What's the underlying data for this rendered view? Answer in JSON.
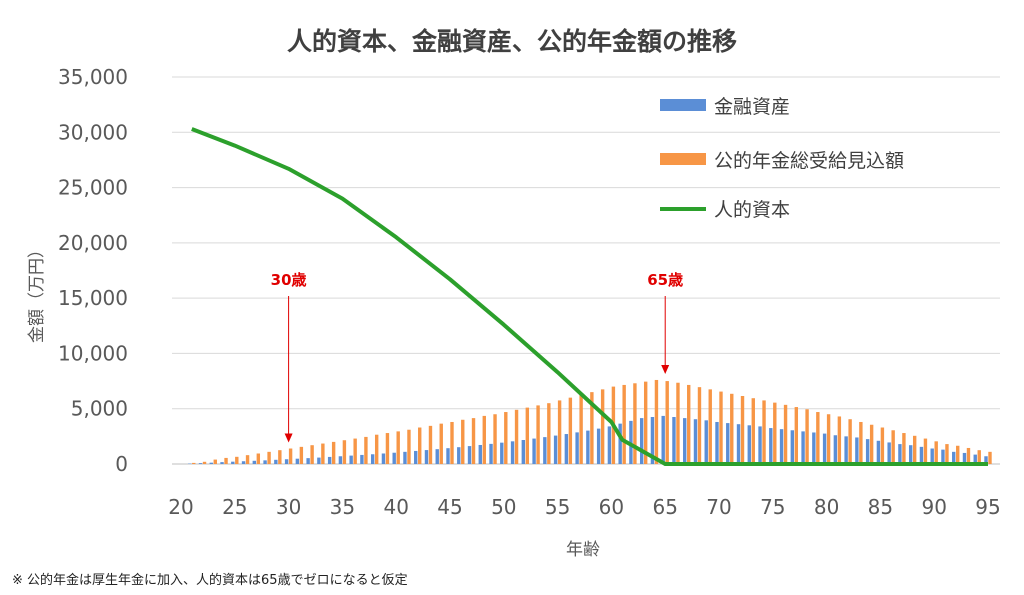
{
  "chart_data": {
    "type": "bar",
    "title": "人的資本、金融資産、公的年金額の推移",
    "xlabel": "年齢",
    "ylabel": "金額（万円）",
    "ylim": [
      0,
      35000
    ],
    "yticks": [
      0,
      5000,
      10000,
      15000,
      20000,
      25000,
      30000,
      35000
    ],
    "ytick_labels": [
      "0",
      "5,000",
      "10,000",
      "15,000",
      "20,000",
      "25,000",
      "30,000",
      "35,000"
    ],
    "xlim": [
      20,
      95
    ],
    "xticks": [
      20,
      25,
      30,
      35,
      40,
      45,
      50,
      55,
      60,
      65,
      70,
      75,
      80,
      85,
      90,
      95
    ],
    "grid": true,
    "legend_position": "top-right",
    "colors": {
      "financial": "#5b8ed6",
      "pension": "#f79646",
      "human": "#2ca02c",
      "annotation": "#e00000"
    },
    "series": [
      {
        "name": "金融資産",
        "type": "bar",
        "color_key": "financial",
        "x": [
          21,
          22,
          23,
          24,
          25,
          26,
          27,
          28,
          29,
          30,
          31,
          32,
          33,
          34,
          35,
          36,
          37,
          38,
          39,
          40,
          41,
          42,
          43,
          44,
          45,
          46,
          47,
          48,
          49,
          50,
          51,
          52,
          53,
          54,
          55,
          56,
          57,
          58,
          59,
          60,
          61,
          62,
          63,
          64,
          65,
          66,
          67,
          68,
          69,
          70,
          71,
          72,
          73,
          74,
          75,
          76,
          77,
          78,
          79,
          80,
          81,
          82,
          83,
          84,
          85,
          86,
          87,
          88,
          89,
          90,
          91,
          92,
          93,
          94,
          95
        ],
        "values": [
          40,
          80,
          120,
          170,
          210,
          250,
          290,
          330,
          380,
          430,
          480,
          530,
          580,
          640,
          700,
          760,
          820,
          880,
          950,
          1020,
          1100,
          1180,
          1260,
          1340,
          1430,
          1520,
          1620,
          1720,
          1820,
          1930,
          2050,
          2170,
          2300,
          2430,
          2570,
          2710,
          2860,
          3020,
          3200,
          3400,
          3650,
          3900,
          4150,
          4250,
          4350,
          4250,
          4150,
          4050,
          3950,
          3800,
          3700,
          3600,
          3500,
          3400,
          3250,
          3150,
          3050,
          2950,
          2850,
          2750,
          2600,
          2500,
          2400,
          2250,
          2100,
          1950,
          1800,
          1700,
          1550,
          1400,
          1300,
          1100,
          1000,
          850,
          700
        ]
      },
      {
        "name": "公的年金総受給見込額",
        "type": "bar",
        "color_key": "pension",
        "x": [
          21,
          22,
          23,
          24,
          25,
          26,
          27,
          28,
          29,
          30,
          31,
          32,
          33,
          34,
          35,
          36,
          37,
          38,
          39,
          40,
          41,
          42,
          43,
          44,
          45,
          46,
          47,
          48,
          49,
          50,
          51,
          52,
          53,
          54,
          55,
          56,
          57,
          58,
          59,
          60,
          61,
          62,
          63,
          64,
          65,
          66,
          67,
          68,
          69,
          70,
          71,
          72,
          73,
          74,
          75,
          76,
          77,
          78,
          79,
          80,
          81,
          82,
          83,
          84,
          85,
          86,
          87,
          88,
          89,
          90,
          91,
          92,
          93,
          94,
          95
        ],
        "values": [
          100,
          200,
          400,
          550,
          650,
          800,
          950,
          1100,
          1250,
          1400,
          1550,
          1700,
          1850,
          2000,
          2150,
          2300,
          2450,
          2650,
          2800,
          2950,
          3100,
          3300,
          3450,
          3650,
          3800,
          4000,
          4150,
          4350,
          4500,
          4700,
          4900,
          5100,
          5300,
          5500,
          5750,
          6000,
          6250,
          6500,
          6750,
          7000,
          7150,
          7300,
          7450,
          7600,
          7500,
          7350,
          7150,
          6950,
          6750,
          6550,
          6350,
          6150,
          5950,
          5750,
          5550,
          5350,
          5150,
          4950,
          4700,
          4500,
          4300,
          4050,
          3800,
          3550,
          3300,
          3050,
          2800,
          2550,
          2300,
          2050,
          1800,
          1650,
          1450,
          1250,
          1100
        ]
      },
      {
        "name": "人的資本",
        "type": "line",
        "color_key": "human",
        "x": [
          21,
          25,
          30,
          35,
          40,
          45,
          50,
          55,
          60,
          61,
          65,
          70,
          75,
          80,
          85,
          90,
          95
        ],
        "values": [
          30300,
          28800,
          26700,
          24000,
          20500,
          16700,
          12600,
          8300,
          3800,
          2200,
          0,
          0,
          0,
          0,
          0,
          0,
          0
        ]
      }
    ],
    "annotations": [
      {
        "text": "30歳",
        "x": 30,
        "y": 1400
      },
      {
        "text": "65歳",
        "x": 65,
        "y": 7600
      }
    ]
  },
  "footnote": "※ 公的年金は厚生年金に加入、人的資本は65歳でゼロになると仮定"
}
